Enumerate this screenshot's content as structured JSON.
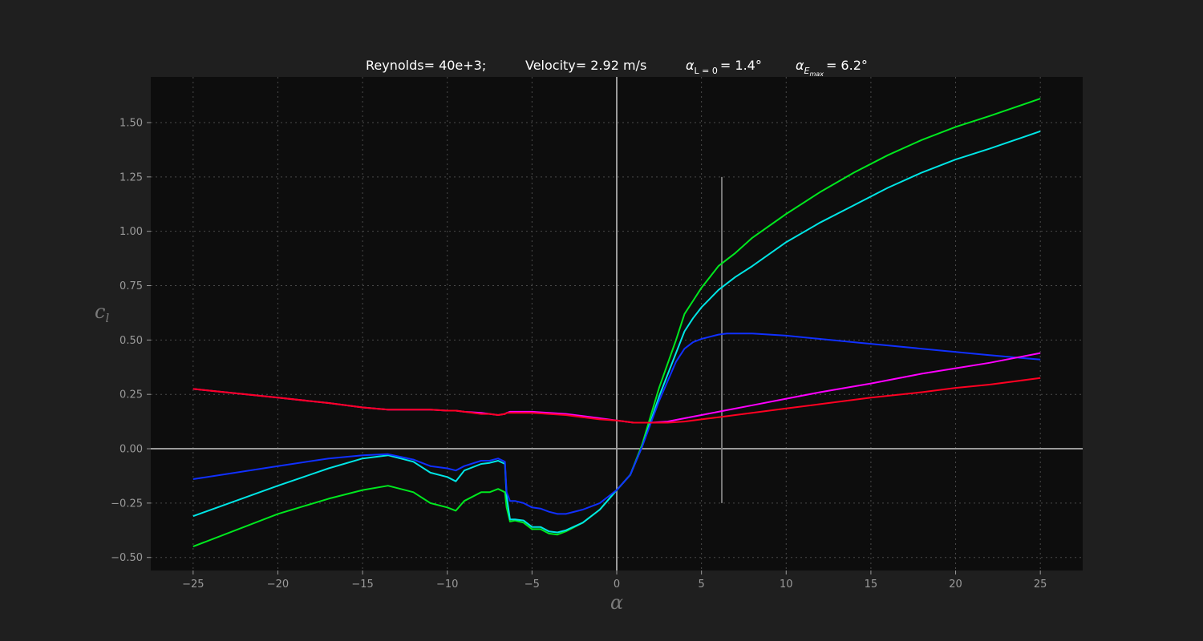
{
  "chart_data": {
    "type": "line",
    "title": {
      "reynolds": "Reynolds= 40e+3;",
      "velocity": "Velocity= 2.92 m/s",
      "alpha_l0_sub": "L = 0",
      "alpha_l0_value": "= 1.4°",
      "alpha_emax_sub": "E",
      "alpha_emax_subsub": "max",
      "alpha_emax_value": "= 6.2°"
    },
    "xlabel": "α",
    "ylabel": "c",
    "ylabel_sub": "l",
    "xlim": [
      -27.5,
      27.5
    ],
    "ylim": [
      -0.56,
      1.71
    ],
    "xticks": [
      -25,
      -20,
      -15,
      -10,
      -5,
      0,
      5,
      10,
      15,
      20,
      25
    ],
    "yticks": [
      -0.5,
      -0.25,
      0,
      0.25,
      0.5,
      0.75,
      1.0,
      1.25,
      1.5
    ],
    "xtick_labels": [
      "−25",
      "−20",
      "−15",
      "−10",
      "−5",
      "0",
      "5",
      "10",
      "15",
      "20",
      "25"
    ],
    "ytick_labels": [
      "−0.50",
      "−0.25",
      "0.00",
      "0.25",
      "0.50",
      "0.75",
      "1.00",
      "1.25",
      "1.50"
    ],
    "grid": true,
    "marker_line": {
      "x": 6.2,
      "y_range": [
        -0.25,
        1.25
      ]
    },
    "colors": {
      "figure_bg": "#1f1f1f",
      "axes_bg": "#0d0d0d",
      "grid": "#4a4a4a",
      "zero_lines": "#9a9a9a",
      "marker": "#777777"
    },
    "series": [
      {
        "color": "#00e81f",
        "x": [
          -25,
          -20,
          -17,
          -15,
          -13.5,
          -12,
          -11,
          -10,
          -9.5,
          -9,
          -8,
          -7.5,
          -7,
          -6.6,
          -6.5,
          -6.3,
          -6,
          -5.5,
          -5,
          -4.5,
          -4,
          -3.5,
          -3,
          -2,
          -1,
          0,
          0.8,
          1.5,
          2.5,
          3.5,
          4,
          4.5,
          5,
          5.5,
          6,
          6.5,
          7,
          8,
          10,
          12,
          14,
          16,
          18,
          20,
          22,
          25
        ],
        "y": [
          -0.45,
          -0.3,
          -0.23,
          -0.19,
          -0.17,
          -0.2,
          -0.25,
          -0.27,
          -0.285,
          -0.24,
          -0.2,
          -0.2,
          -0.185,
          -0.2,
          -0.27,
          -0.335,
          -0.33,
          -0.34,
          -0.37,
          -0.37,
          -0.39,
          -0.395,
          -0.38,
          -0.34,
          -0.28,
          -0.19,
          -0.12,
          0.02,
          0.28,
          0.5,
          0.62,
          0.68,
          0.74,
          0.79,
          0.84,
          0.87,
          0.9,
          0.97,
          1.08,
          1.18,
          1.27,
          1.35,
          1.42,
          1.48,
          1.53,
          1.61
        ]
      },
      {
        "color": "#00e5e5",
        "x": [
          -25,
          -20,
          -17,
          -15,
          -13.5,
          -12,
          -11,
          -10,
          -9.5,
          -9,
          -8,
          -7.5,
          -7,
          -6.6,
          -6.5,
          -6.3,
          -6,
          -5.5,
          -5,
          -4.5,
          -4,
          -3.5,
          -3,
          -2,
          -1,
          0,
          0.8,
          1.5,
          2.5,
          3.5,
          4,
          4.5,
          5,
          5.5,
          6,
          6.5,
          7,
          8,
          10,
          12,
          14,
          16,
          18,
          20,
          22,
          25
        ],
        "y": [
          -0.31,
          -0.17,
          -0.09,
          -0.045,
          -0.03,
          -0.06,
          -0.11,
          -0.13,
          -0.15,
          -0.1,
          -0.07,
          -0.065,
          -0.055,
          -0.07,
          -0.22,
          -0.325,
          -0.325,
          -0.33,
          -0.36,
          -0.36,
          -0.38,
          -0.385,
          -0.375,
          -0.34,
          -0.28,
          -0.19,
          -0.12,
          0.01,
          0.24,
          0.44,
          0.54,
          0.6,
          0.65,
          0.69,
          0.73,
          0.76,
          0.79,
          0.84,
          0.95,
          1.04,
          1.12,
          1.2,
          1.27,
          1.33,
          1.38,
          1.46
        ]
      },
      {
        "color": "#1030ff",
        "x": [
          -25,
          -20,
          -17,
          -15,
          -13.5,
          -12,
          -11,
          -10,
          -9.5,
          -9,
          -8,
          -7.5,
          -7,
          -6.6,
          -6.5,
          -6.3,
          -6,
          -5.5,
          -5,
          -4.5,
          -4,
          -3.5,
          -3,
          -2,
          -1,
          0,
          0.8,
          1.5,
          2.5,
          3.5,
          4,
          4.5,
          5,
          5.5,
          6,
          6.5,
          7,
          8,
          10,
          12,
          14,
          16,
          18,
          20,
          22,
          25
        ],
        "y": [
          -0.14,
          -0.08,
          -0.045,
          -0.03,
          -0.025,
          -0.05,
          -0.08,
          -0.09,
          -0.1,
          -0.08,
          -0.055,
          -0.055,
          -0.045,
          -0.06,
          -0.2,
          -0.24,
          -0.24,
          -0.25,
          -0.27,
          -0.275,
          -0.29,
          -0.3,
          -0.3,
          -0.28,
          -0.25,
          -0.19,
          -0.12,
          0.01,
          0.22,
          0.4,
          0.46,
          0.49,
          0.505,
          0.515,
          0.525,
          0.53,
          0.53,
          0.53,
          0.52,
          0.505,
          0.49,
          0.475,
          0.46,
          0.445,
          0.43,
          0.41
        ]
      },
      {
        "color": "#ff00ff",
        "x": [
          -25,
          -20,
          -17,
          -15,
          -13.5,
          -12,
          -11,
          -10,
          -9.5,
          -9,
          -8,
          -7.5,
          -7,
          -6.6,
          -6.5,
          -6.3,
          -6,
          -5,
          -4,
          -3,
          -2,
          -1,
          0,
          1,
          2,
          3,
          4,
          5,
          6,
          8,
          10,
          12,
          15,
          18,
          20,
          22,
          25
        ],
        "y": [
          0.275,
          0.235,
          0.21,
          0.19,
          0.18,
          0.18,
          0.18,
          0.175,
          0.175,
          0.17,
          0.165,
          0.16,
          0.155,
          0.16,
          0.165,
          0.17,
          0.17,
          0.17,
          0.165,
          0.16,
          0.15,
          0.14,
          0.13,
          0.12,
          0.12,
          0.125,
          0.14,
          0.155,
          0.17,
          0.2,
          0.23,
          0.26,
          0.3,
          0.345,
          0.37,
          0.395,
          0.44
        ]
      },
      {
        "color": "#ff0022",
        "x": [
          -25,
          -20,
          -17,
          -15,
          -13.5,
          -12,
          -11,
          -10,
          -9.5,
          -9,
          -8,
          -7.5,
          -7,
          -6.6,
          -6.5,
          -6.3,
          -6,
          -5,
          -4,
          -3,
          -2,
          -1,
          0,
          1,
          2,
          3,
          4,
          5,
          6,
          8,
          10,
          12,
          15,
          18,
          20,
          22,
          25
        ],
        "y": [
          0.275,
          0.235,
          0.21,
          0.19,
          0.18,
          0.18,
          0.18,
          0.175,
          0.175,
          0.17,
          0.16,
          0.16,
          0.155,
          0.16,
          0.165,
          0.165,
          0.165,
          0.165,
          0.16,
          0.155,
          0.145,
          0.135,
          0.13,
          0.12,
          0.12,
          0.12,
          0.125,
          0.135,
          0.145,
          0.165,
          0.185,
          0.205,
          0.235,
          0.26,
          0.28,
          0.295,
          0.325
        ]
      }
    ]
  }
}
